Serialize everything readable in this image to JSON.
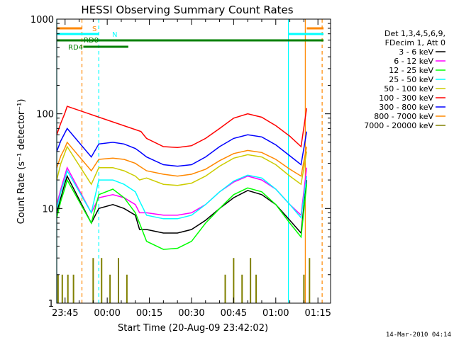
{
  "chart_data": {
    "type": "line",
    "title": "HESSI Observing Summary Count Rates",
    "xlabel": "Start Time (20-Aug-09 23:42:02)",
    "ylabel": "Count Rate (s⁻¹ detector⁻¹)",
    "y_scale": "log",
    "ylim": [
      1,
      1000
    ],
    "xlim": [
      "23:42:02",
      "01:19:30"
    ],
    "x_ticks": [
      "23:45",
      "00:00",
      "00:15",
      "00:30",
      "00:45",
      "01:00",
      "01:15"
    ],
    "y_ticks": [
      "1",
      "10",
      "100",
      "1000"
    ],
    "grid": false,
    "legend_position": "right",
    "legend_header": [
      "Det 1,3,4,5,6,9,",
      "FDecim 1, Att 0"
    ],
    "footer": "14-Mar-2010 04:14",
    "series": [
      {
        "name": "3 - 6 keV",
        "color": "#000000",
        "x": [
          "23:42:02",
          "23:43:30",
          "23:44:50",
          "23:45:45",
          "23:54:20",
          "23:57:00",
          "00:02:00",
          "00:06:00",
          "00:10:00",
          "00:11:30",
          "00:14:00",
          "00:20:00",
          "00:25:00",
          "00:30:00",
          "00:35:00",
          "00:40:00",
          "00:45:00",
          "00:50:00",
          "00:55:00",
          "01:00:00",
          "01:05:00",
          "01:09:00",
          "01:11:00"
        ],
        "y": [
          9,
          13,
          18,
          22,
          7,
          10,
          11,
          10,
          8.5,
          6,
          6,
          5.5,
          5.5,
          6,
          7.5,
          10,
          13,
          15.5,
          14,
          11,
          7.5,
          5.5,
          20
        ]
      },
      {
        "name": "6 - 12 keV",
        "color": "#ff00ff",
        "x": [
          "23:42:02",
          "23:43:30",
          "23:44:50",
          "23:45:45",
          "23:54:20",
          "23:57:00",
          "00:02:00",
          "00:06:00",
          "00:10:00",
          "00:11:30",
          "00:14:00",
          "00:20:00",
          "00:25:00",
          "00:30:00",
          "00:35:00",
          "00:40:00",
          "00:45:00",
          "00:50:00",
          "00:55:00",
          "01:00:00",
          "01:05:00",
          "01:09:00",
          "01:11:00"
        ],
        "y": [
          11,
          16,
          22,
          27,
          9,
          13,
          14,
          13,
          11,
          9,
          9,
          8.5,
          8.5,
          9,
          11,
          15,
          19,
          22,
          20,
          16,
          11,
          8.5,
          27
        ]
      },
      {
        "name": "12 - 25 keV",
        "color": "#00ff00",
        "x": [
          "23:42:02",
          "23:43:30",
          "23:44:50",
          "23:45:45",
          "23:54:20",
          "23:57:00",
          "00:02:00",
          "00:06:00",
          "00:10:00",
          "00:11:30",
          "00:14:00",
          "00:20:00",
          "00:25:00",
          "00:30:00",
          "00:35:00",
          "00:40:00",
          "00:45:00",
          "00:50:00",
          "00:55:00",
          "01:00:00",
          "01:05:00",
          "01:09:00",
          "01:11:00"
        ],
        "y": [
          8,
          12,
          16,
          20,
          7,
          14,
          16,
          13,
          9,
          7,
          4.5,
          3.7,
          3.8,
          4.5,
          7,
          10,
          14,
          16.5,
          15,
          11,
          7,
          5,
          18
        ]
      },
      {
        "name": "25 - 50 keV",
        "color": "#00ffff",
        "x": [
          "23:42:02",
          "23:43:30",
          "23:44:50",
          "23:45:45",
          "23:54:20",
          "23:57:00",
          "00:02:00",
          "00:06:00",
          "00:10:00",
          "00:11:30",
          "00:14:00",
          "00:20:00",
          "00:25:00",
          "00:30:00",
          "00:35:00",
          "00:40:00",
          "00:45:00",
          "00:50:00",
          "00:55:00",
          "01:00:00",
          "01:05:00",
          "01:09:00",
          "01:11:00"
        ],
        "y": [
          10,
          15,
          20,
          25,
          9,
          20,
          20,
          18,
          15,
          12,
          8.5,
          7.8,
          7.8,
          8.5,
          11,
          15,
          19.5,
          22.5,
          21,
          16,
          11,
          8,
          22
        ]
      },
      {
        "name": "50 - 100 keV",
        "color": "#cccc00",
        "x": [
          "23:42:02",
          "23:43:30",
          "23:44:50",
          "23:45:45",
          "23:54:20",
          "23:57:00",
          "00:02:00",
          "00:06:00",
          "00:10:00",
          "00:11:30",
          "00:14:00",
          "00:20:00",
          "00:25:00",
          "00:30:00",
          "00:35:00",
          "00:40:00",
          "00:45:00",
          "00:50:00",
          "00:55:00",
          "01:00:00",
          "01:05:00",
          "01:09:00",
          "01:11:00"
        ],
        "y": [
          20,
          30,
          38,
          45,
          18,
          27,
          27,
          25,
          22,
          20,
          21,
          18,
          17.5,
          18.5,
          22,
          28,
          34,
          37,
          35,
          29,
          22,
          18,
          40
        ]
      },
      {
        "name": "100 - 300 keV",
        "color": "#ff0000",
        "x": [
          "23:42:02",
          "23:43:30",
          "23:44:50",
          "23:45:45",
          "00:12:00",
          "00:14:00",
          "00:20:00",
          "00:25:00",
          "00:30:00",
          "00:35:00",
          "00:40:00",
          "00:45:00",
          "00:50:00",
          "00:55:00",
          "01:00:00",
          "01:05:00",
          "01:09:00",
          "01:11:00"
        ],
        "y": [
          60,
          80,
          100,
          120,
          65,
          55,
          45,
          44,
          46,
          55,
          70,
          90,
          100,
          92,
          75,
          58,
          45,
          115
        ]
      },
      {
        "name": "300 - 800 keV",
        "color": "#0000ff",
        "x": [
          "23:42:02",
          "23:43:30",
          "23:44:50",
          "23:45:45",
          "23:54:20",
          "23:57:00",
          "00:02:00",
          "00:06:00",
          "00:10:00",
          "00:11:30",
          "00:14:00",
          "00:20:00",
          "00:25:00",
          "00:30:00",
          "00:35:00",
          "00:40:00",
          "00:45:00",
          "00:50:00",
          "00:55:00",
          "01:00:00",
          "01:05:00",
          "01:09:00",
          "01:11:00"
        ],
        "y": [
          40,
          52,
          62,
          70,
          35,
          48,
          50,
          48,
          43,
          40,
          35,
          29,
          28,
          29,
          35,
          45,
          55,
          60,
          57,
          47,
          36,
          29,
          65
        ]
      },
      {
        "name": "800 - 7000 keV",
        "color": "#ff8800",
        "x": [
          "23:42:02",
          "23:43:30",
          "23:44:50",
          "23:45:45",
          "23:54:20",
          "23:57:00",
          "00:02:00",
          "00:06:00",
          "00:10:00",
          "00:11:30",
          "00:14:00",
          "00:20:00",
          "00:25:00",
          "00:30:00",
          "00:35:00",
          "00:40:00",
          "00:45:00",
          "00:50:00",
          "00:55:00",
          "01:00:00",
          "01:05:00",
          "01:09:00",
          "01:11:00"
        ],
        "y": [
          27,
          36,
          43,
          50,
          25,
          33,
          34,
          33,
          30,
          28,
          25,
          23,
          22,
          23,
          26,
          32,
          38,
          41,
          39,
          33,
          26,
          22,
          45
        ]
      },
      {
        "name": "7000 - 20000 keV",
        "color": "#808000",
        "note": "sparse counts near background; bursts at 23:42-23:49, 23:54-00:08, 00:41-00:54, 01:09-01:14",
        "x": [
          "23:42:30",
          "23:44:00",
          "23:46:00",
          "23:48:00",
          "23:55:00",
          "23:58:00",
          "00:01:00",
          "00:04:00",
          "00:07:00",
          "00:42:00",
          "00:45:00",
          "00:48:00",
          "00:51:00",
          "00:53:00",
          "01:10:00",
          "01:12:00"
        ],
        "y": [
          2,
          2,
          2,
          2,
          3,
          3,
          2,
          3,
          2,
          2,
          3,
          2,
          3,
          2,
          2,
          3
        ]
      }
    ],
    "annotations": [
      {
        "text": "S",
        "color": "#ff8800"
      },
      {
        "text": "N",
        "color": "#00ffff"
      },
      {
        "text": "RD0",
        "color": "#008000"
      },
      {
        "text": "RD4",
        "color": "#008000"
      }
    ],
    "vertical_markers": [
      {
        "time": "23:42:02",
        "color": "#00ffff",
        "style": "solid"
      },
      {
        "time": "23:51:00",
        "color": "#ff8800",
        "style": "dashed"
      },
      {
        "time": "23:57:00",
        "color": "#00ffff",
        "style": "dashed"
      },
      {
        "time": "01:04:30",
        "color": "#00ffff",
        "style": "solid"
      },
      {
        "time": "01:10:30",
        "color": "#ff8800",
        "style": "solid"
      },
      {
        "time": "01:16:30",
        "color": "#ff8800",
        "style": "dashed"
      }
    ],
    "bars_top": [
      {
        "label": "S",
        "color": "#ff8800",
        "ranges": [
          [
            "23:42:02",
            "23:51:00"
          ],
          [
            "01:11:00",
            "01:17:00"
          ]
        ]
      },
      {
        "label": "N",
        "color": "#00ffff",
        "ranges": [
          [
            "23:42:02",
            "23:57:00"
          ],
          [
            "01:04:30",
            "01:17:00"
          ]
        ]
      },
      {
        "label": "RD0",
        "color": "#008000",
        "ranges": [
          [
            "23:42:02",
            "01:17:00"
          ]
        ]
      },
      {
        "label": "RD4",
        "color": "#008000",
        "ranges": [
          [
            "23:51:30",
            "00:07:30"
          ]
        ]
      }
    ]
  }
}
